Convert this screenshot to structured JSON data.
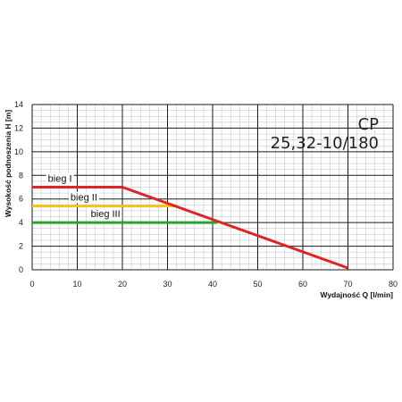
{
  "chart_data": {
    "type": "line",
    "title": "CP",
    "subtitle": "25,32-10/180",
    "xlabel": "Wydajność Q [l/min]",
    "ylabel": "Wysokość podnoszenia H [m]",
    "xlim": [
      0,
      80
    ],
    "ylim": [
      0,
      14
    ],
    "x_ticks": [
      "0",
      "10",
      "20",
      "30",
      "40",
      "50",
      "60",
      "70",
      "80"
    ],
    "y_ticks": [
      "0",
      "2",
      "4",
      "6",
      "8",
      "10",
      "12",
      "14"
    ],
    "grid": true,
    "series": [
      {
        "name": "bieg I",
        "color": "#e02424",
        "x": [
          0,
          20,
          70
        ],
        "y": [
          7.0,
          7.0,
          0.15
        ]
      },
      {
        "name": "bieg II",
        "color": "#f5c518",
        "x": [
          0,
          32
        ],
        "y": [
          5.4,
          5.4
        ]
      },
      {
        "name": "bieg III",
        "color": "#2aa52a",
        "x": [
          0,
          41
        ],
        "y": [
          4.0,
          4.0
        ]
      }
    ]
  }
}
